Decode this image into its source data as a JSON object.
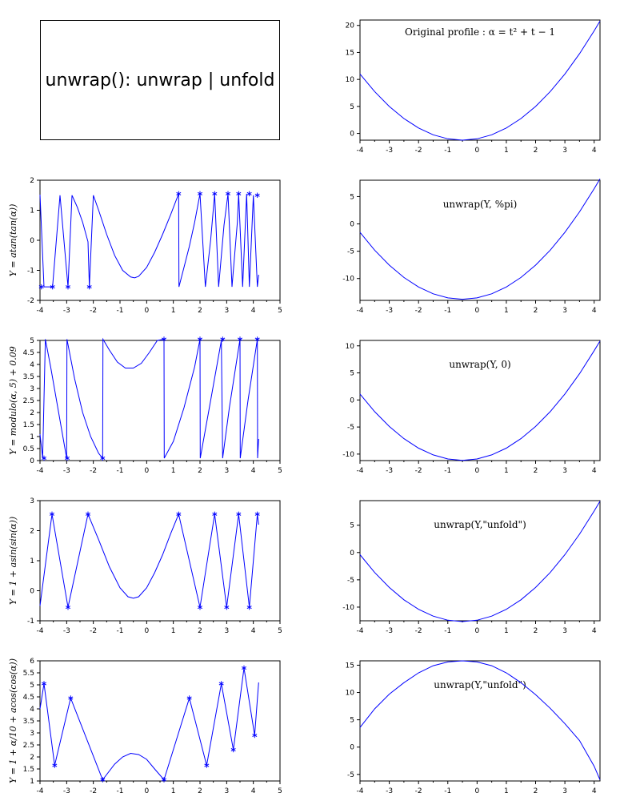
{
  "title_box": {
    "text": "unwrap(): unwrap | unfold"
  },
  "colors": {
    "curve": "#0000ff",
    "axis": "#000000"
  },
  "chart_data": [
    {
      "id": "left-1",
      "type": "line",
      "ylabel": "Y = atan(tan(α))",
      "xlim": [
        -4,
        5
      ],
      "ylim": [
        -2,
        2
      ],
      "xticks": [
        -4,
        -3,
        -2,
        -1,
        0,
        1,
        2,
        3,
        4,
        5
      ],
      "yticks": [
        -2,
        -1,
        0,
        1,
        2
      ],
      "x": [
        -4.0,
        -3.85,
        -3.53,
        -3.25,
        -2.95,
        -2.8,
        -2.6,
        -2.4,
        -2.2,
        -2.15,
        -2.0,
        -1.8,
        -1.5,
        -1.2,
        -0.9,
        -0.6,
        -0.45,
        -0.3,
        0.0,
        0.3,
        0.6,
        0.9,
        1.2,
        1.21,
        1.4,
        1.6,
        1.8,
        2.0,
        2.2,
        2.4,
        2.55,
        2.7,
        2.9,
        3.05,
        3.2,
        3.4,
        3.45,
        3.6,
        3.75,
        3.85,
        4.0,
        4.15,
        4.2
      ],
      "y": [
        1.52,
        -1.55,
        -1.55,
        1.5,
        -1.55,
        1.5,
        1.1,
        0.6,
        -0.05,
        -1.55,
        1.5,
        1.0,
        0.2,
        -0.5,
        -1.0,
        -1.22,
        -1.25,
        -1.2,
        -0.9,
        -0.4,
        0.2,
        0.85,
        1.55,
        -1.55,
        -0.9,
        -0.2,
        0.6,
        1.55,
        -1.55,
        0.0,
        1.55,
        -1.55,
        0.5,
        1.55,
        -1.55,
        0.6,
        1.55,
        -1.55,
        1.55,
        -1.55,
        1.5,
        -1.55,
        -1.15
      ],
      "markers": [
        [
          -3.95,
          -1.55
        ],
        [
          -3.53,
          -1.55
        ],
        [
          -2.95,
          -1.55
        ],
        [
          -2.15,
          -1.55
        ],
        [
          1.2,
          1.55
        ],
        [
          2.0,
          1.55
        ],
        [
          2.55,
          1.55
        ],
        [
          3.05,
          1.55
        ],
        [
          3.45,
          1.55
        ],
        [
          3.85,
          1.55
        ],
        [
          4.15,
          1.5
        ]
      ]
    },
    {
      "id": "left-2",
      "type": "line",
      "ylabel": "Y = modulo(α, 5) + 0.09",
      "xlim": [
        -4,
        5
      ],
      "ylim": [
        0,
        5
      ],
      "xticks": [
        -4,
        -3,
        -2,
        -1,
        0,
        1,
        2,
        3,
        4,
        5
      ],
      "yticks": [
        0,
        0.5,
        1,
        1.5,
        2,
        2.5,
        3,
        3.5,
        4,
        4.5,
        5
      ],
      "x": [
        -4.0,
        -3.9,
        -3.8,
        -3.6,
        -3.3,
        -3.0,
        -2.99,
        -2.7,
        -2.4,
        -2.1,
        -1.8,
        -1.65,
        -1.64,
        -1.4,
        -1.1,
        -0.8,
        -0.5,
        -0.2,
        0.1,
        0.4,
        0.65,
        0.66,
        1.0,
        1.4,
        1.8,
        2.0,
        2.01,
        2.4,
        2.8,
        2.85,
        3.1,
        3.5,
        3.51,
        3.8,
        4.15,
        4.16,
        4.2
      ],
      "y": [
        1.1,
        0.1,
        5.05,
        3.9,
        2.0,
        0.1,
        5.05,
        3.4,
        2.0,
        1.0,
        0.3,
        0.1,
        5.05,
        4.6,
        4.1,
        3.85,
        3.85,
        4.05,
        4.5,
        5.0,
        5.05,
        0.1,
        0.8,
        2.2,
        3.9,
        5.05,
        0.1,
        2.5,
        5.0,
        0.1,
        2.2,
        5.05,
        0.1,
        2.5,
        5.05,
        0.1,
        0.9
      ],
      "markers": [
        [
          -3.85,
          0.1
        ],
        [
          -2.98,
          0.1
        ],
        [
          -1.65,
          0.1
        ],
        [
          0.65,
          5.05
        ],
        [
          2.0,
          5.05
        ],
        [
          2.85,
          5.05
        ],
        [
          3.5,
          5.05
        ],
        [
          4.15,
          5.05
        ]
      ]
    },
    {
      "id": "left-3",
      "type": "line",
      "ylabel": "Y = 1 + asin(sin(α))",
      "xlim": [
        -4,
        5
      ],
      "ylim": [
        -1,
        3
      ],
      "xticks": [
        -4,
        -3,
        -2,
        -1,
        0,
        1,
        2,
        3,
        4,
        5
      ],
      "yticks": [
        -1,
        0,
        1,
        2,
        3
      ],
      "x": [
        -4.0,
        -3.55,
        -2.95,
        -2.2,
        -1.8,
        -1.4,
        -1.0,
        -0.7,
        -0.5,
        -0.3,
        0.0,
        0.3,
        0.6,
        0.9,
        1.2,
        2.0,
        2.55,
        3.0,
        3.45,
        3.85,
        4.15,
        4.2
      ],
      "y": [
        -0.5,
        2.55,
        -0.55,
        2.55,
        1.7,
        0.8,
        0.1,
        -0.2,
        -0.25,
        -0.2,
        0.1,
        0.6,
        1.2,
        1.9,
        2.55,
        -0.55,
        2.55,
        -0.55,
        2.55,
        -0.55,
        2.55,
        2.2
      ],
      "markers": [
        [
          -3.55,
          2.55
        ],
        [
          -2.95,
          -0.55
        ],
        [
          -2.2,
          2.55
        ],
        [
          1.2,
          2.55
        ],
        [
          2.0,
          -0.55
        ],
        [
          2.55,
          2.55
        ],
        [
          3.0,
          -0.55
        ],
        [
          3.45,
          2.55
        ],
        [
          3.85,
          -0.55
        ],
        [
          4.15,
          2.55
        ]
      ]
    },
    {
      "id": "left-4",
      "type": "line",
      "ylabel": "Y = 1 + α/10 + acos(cos(α))",
      "xlim": [
        -4,
        5
      ],
      "ylim": [
        1,
        6
      ],
      "xticks": [
        -4,
        -3,
        -2,
        -1,
        0,
        1,
        2,
        3,
        4,
        5
      ],
      "yticks": [
        1,
        1.5,
        2,
        2.5,
        3,
        3.5,
        4,
        4.5,
        5,
        5.5,
        6
      ],
      "x": [
        -4.0,
        -3.85,
        -3.45,
        -2.85,
        -1.65,
        -1.2,
        -0.9,
        -0.6,
        -0.3,
        0.0,
        0.3,
        0.65,
        1.6,
        2.25,
        2.8,
        3.25,
        3.65,
        4.05,
        4.2
      ],
      "y": [
        4.0,
        5.05,
        1.65,
        4.45,
        1.05,
        1.7,
        2.0,
        2.15,
        2.1,
        1.9,
        1.5,
        1.05,
        4.45,
        1.65,
        5.05,
        2.3,
        5.7,
        2.9,
        5.1
      ],
      "markers": [
        [
          -3.85,
          5.05
        ],
        [
          -3.45,
          1.65
        ],
        [
          -2.85,
          4.45
        ],
        [
          -1.65,
          1.05
        ],
        [
          0.65,
          1.05
        ],
        [
          1.6,
          4.45
        ],
        [
          2.25,
          1.65
        ],
        [
          2.8,
          5.05
        ],
        [
          3.25,
          2.3
        ],
        [
          3.65,
          5.7
        ],
        [
          4.05,
          2.9
        ]
      ]
    },
    {
      "id": "right-0",
      "type": "line",
      "annotation": "Original profile : α = t² + t − 1",
      "xlim": [
        -4,
        4.2
      ],
      "ylim": [
        -1.25,
        21
      ],
      "xticks": [
        -4,
        -3,
        -2,
        -1,
        0,
        1,
        2,
        3,
        4
      ],
      "yticks": [
        0,
        5,
        10,
        15,
        20
      ],
      "x": [
        -4.0,
        -3.5,
        -3.0,
        -2.5,
        -2.0,
        -1.5,
        -1.0,
        -0.5,
        0.0,
        0.5,
        1.0,
        1.5,
        2.0,
        2.5,
        3.0,
        3.5,
        4.0,
        4.2
      ],
      "y": [
        11.0,
        7.75,
        5.0,
        2.75,
        1.0,
        -0.25,
        -1.0,
        -1.25,
        -1.0,
        -0.25,
        1.0,
        2.75,
        5.0,
        7.75,
        11.0,
        14.75,
        19.0,
        20.8
      ]
    },
    {
      "id": "right-1",
      "type": "line",
      "annotation": "unwrap(Y, %pi)",
      "xlim": [
        -4,
        4.2
      ],
      "ylim": [
        -14,
        8
      ],
      "xticks": [
        -4,
        -3,
        -2,
        -1,
        0,
        1,
        2,
        3,
        4
      ],
      "yticks": [
        -10,
        -5,
        0,
        5
      ],
      "x": [
        -4.0,
        -3.5,
        -3.0,
        -2.5,
        -2.0,
        -1.5,
        -1.0,
        -0.5,
        0.0,
        0.5,
        1.0,
        1.5,
        2.0,
        2.5,
        3.0,
        3.5,
        4.0,
        4.2
      ],
      "y": [
        -1.55,
        -4.8,
        -7.55,
        -9.8,
        -11.55,
        -12.8,
        -13.55,
        -13.8,
        -13.55,
        -12.8,
        -11.55,
        -9.8,
        -7.55,
        -4.8,
        -1.55,
        2.2,
        6.45,
        8.25
      ]
    },
    {
      "id": "right-2",
      "type": "line",
      "annotation": "unwrap(Y, 0)",
      "xlim": [
        -4,
        4.2
      ],
      "ylim": [
        -11.2,
        11
      ],
      "xticks": [
        -4,
        -3,
        -2,
        -1,
        0,
        1,
        2,
        3,
        4
      ],
      "yticks": [
        -10,
        -5,
        0,
        5,
        10
      ],
      "x": [
        -4.0,
        -3.5,
        -3.0,
        -2.5,
        -2.0,
        -1.5,
        -1.0,
        -0.5,
        0.0,
        0.5,
        1.0,
        1.5,
        2.0,
        2.5,
        3.0,
        3.5,
        4.0,
        4.2
      ],
      "y": [
        1.1,
        -2.15,
        -4.9,
        -7.15,
        -8.9,
        -10.15,
        -10.9,
        -11.15,
        -10.9,
        -10.15,
        -8.9,
        -7.15,
        -4.9,
        -2.15,
        1.1,
        4.85,
        9.1,
        10.9
      ]
    },
    {
      "id": "right-3",
      "type": "line",
      "annotation": "unwrap(Y,\"unfold\")",
      "xlim": [
        -4,
        4.2
      ],
      "ylim": [
        -12.5,
        9.5
      ],
      "xticks": [
        -4,
        -3,
        -2,
        -1,
        0,
        1,
        2,
        3,
        4
      ],
      "yticks": [
        -10,
        -5,
        0,
        5
      ],
      "x": [
        -4.0,
        -3.5,
        -3.0,
        -2.5,
        -2.0,
        -1.5,
        -1.0,
        -0.5,
        0.0,
        0.5,
        1.0,
        1.5,
        2.0,
        2.5,
        3.0,
        3.5,
        4.0,
        4.2
      ],
      "y": [
        -0.4,
        -3.65,
        -6.4,
        -8.65,
        -10.4,
        -11.65,
        -12.4,
        -12.65,
        -12.4,
        -11.65,
        -10.4,
        -8.65,
        -6.4,
        -3.65,
        -0.4,
        3.35,
        7.6,
        9.4
      ]
    },
    {
      "id": "right-4",
      "type": "line",
      "annotation": "unwrap(Y,\"unfold\")",
      "xlim": [
        -4,
        4.2
      ],
      "ylim": [
        -6.2,
        15.8
      ],
      "xticks": [
        -4,
        -3,
        -2,
        -1,
        0,
        1,
        2,
        3,
        4
      ],
      "yticks": [
        -5,
        0,
        5,
        10,
        15
      ],
      "x": [
        -4.0,
        -3.5,
        -3.0,
        -2.5,
        -2.0,
        -1.5,
        -1.0,
        -0.5,
        0.0,
        0.5,
        1.0,
        1.5,
        2.0,
        2.5,
        3.0,
        3.5,
        4.0,
        4.2
      ],
      "y": [
        3.6,
        7.0,
        9.7,
        11.8,
        13.6,
        14.9,
        15.6,
        15.8,
        15.6,
        14.9,
        13.6,
        11.8,
        9.6,
        7.1,
        4.3,
        1.2,
        -3.5,
        -6.0
      ]
    }
  ]
}
